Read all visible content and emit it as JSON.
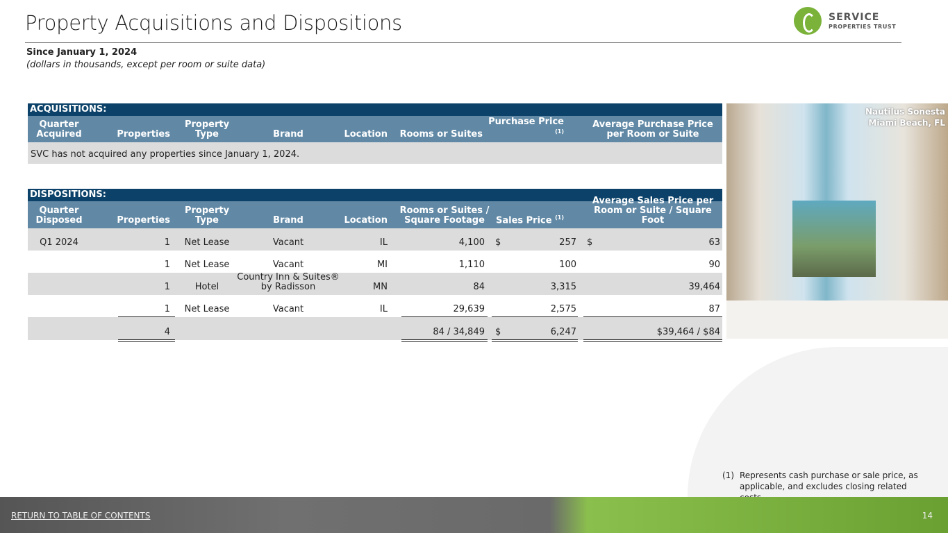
{
  "header": {
    "title": "Property Acquisitions and Dispositions",
    "subtitle": "Since January 1, 2024",
    "note": "(dollars in thousands, except per room or suite data)",
    "logo_line1": "SERVICE",
    "logo_line2": "PROPERTIES TRUST"
  },
  "acquisitions": {
    "band": "ACQUISITIONS:",
    "columns": [
      "Quarter Acquired",
      "Properties",
      "Property Type",
      "Brand",
      "Location",
      "Rooms or Suites",
      "Purchase Price",
      "Average Purchase Price per Room or Suite"
    ],
    "footnote_ref": "(1)",
    "message": "SVC has not acquired any properties since January 1, 2024."
  },
  "dispositions": {
    "band": "DISPOSITIONS:",
    "columns": [
      "Quarter Disposed",
      "Properties",
      "Property Type",
      "Brand",
      "Location",
      "Rooms or Suites / Square Footage",
      "Sales Price",
      "Average Sales Price per Room or Suite / Square Foot"
    ],
    "footnote_ref": "(1)",
    "rows": [
      {
        "quarter": "Q1 2024",
        "properties": "1",
        "type": "Net Lease",
        "brand": "Vacant",
        "location": "IL",
        "rooms": "4,100",
        "price_cur": "$",
        "price": "257",
        "avg_cur": "$",
        "avg": "63"
      },
      {
        "quarter": "",
        "properties": "1",
        "type": "Net Lease",
        "brand": "Vacant",
        "location": "MI",
        "rooms": "1,110",
        "price_cur": "",
        "price": "100",
        "avg_cur": "",
        "avg": "90"
      },
      {
        "quarter": "",
        "properties": "1",
        "type": "Hotel",
        "brand": "Country Inn & Suites® by Radisson",
        "location": "MN",
        "rooms": "84",
        "price_cur": "",
        "price": "3,315",
        "avg_cur": "",
        "avg": "39,464"
      },
      {
        "quarter": "",
        "properties": "1",
        "type": "Net Lease",
        "brand": "Vacant",
        "location": "IL",
        "rooms": "29,639",
        "price_cur": "",
        "price": "2,575",
        "avg_cur": "",
        "avg": "87"
      }
    ],
    "total": {
      "properties": "4",
      "rooms": "84 / 34,849",
      "price_cur": "$",
      "price": "6,247",
      "avg": "$39,464 / $84"
    }
  },
  "photo": {
    "caption_line1": "Nautilus Sonesta",
    "caption_line2": "Miami Beach, FL"
  },
  "footnote": {
    "num": "(1)",
    "text": "Represents cash purchase or sale price, as applicable, and excludes closing related costs."
  },
  "footer": {
    "return_link": "RETURN TO TABLE OF CONTENTS",
    "page": "14"
  },
  "colors": {
    "band": "#0c4269",
    "header": "#6189a6",
    "row_gray": "#dcdcdc",
    "brand_green": "#7ab23a"
  }
}
